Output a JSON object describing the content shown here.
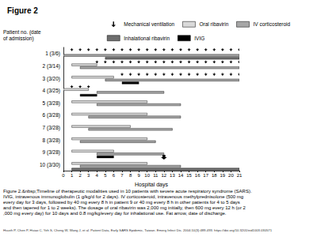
{
  "chart_data": {
    "type": "timeline",
    "title": "Figure 2",
    "ylabel": "Patient no. (date of admission)",
    "xlabel": "Hospital days",
    "categories": [
      "1 (3/6)",
      "2 (3/14)",
      "3 (3/20)",
      "4 (3/25)",
      "5 (3/28)",
      "6 (3/28)",
      "7 (3/28)",
      "8 (3/28)",
      "9 (3/28)",
      "10 (3/30)"
    ],
    "xlim": [
      0,
      21
    ],
    "xticks": [
      0,
      1,
      2,
      3,
      4,
      5,
      6,
      7,
      8,
      9,
      10,
      11,
      12,
      13,
      14,
      15,
      16,
      17,
      18,
      19,
      20,
      21
    ],
    "grid": false,
    "legend": "top",
    "series": [
      {
        "name": "Mechanical ventilation",
        "type": "scatter",
        "marker": "arrow",
        "color": "#000000",
        "values": [
          {
            "patient": "1 (3/6)",
            "day": 1
          },
          {
            "patient": "1 (3/6)",
            "day": 2
          },
          {
            "patient": "1 (3/6)",
            "day": 3
          },
          {
            "patient": "1 (3/6)",
            "day": 4
          },
          {
            "patient": "1 (3/6)",
            "day": 5
          },
          {
            "patient": "1 (3/6)",
            "day": 6
          },
          {
            "patient": "1 (3/6)",
            "day": 7
          },
          {
            "patient": "1 (3/6)",
            "day": 8
          },
          {
            "patient": "1 (3/6)",
            "day": 9
          },
          {
            "patient": "1 (3/6)",
            "day": 10
          },
          {
            "patient": "1 (3/6)",
            "day": 11
          },
          {
            "patient": "1 (3/6)",
            "day": 12
          },
          {
            "patient": "1 (3/6)",
            "day": 13
          },
          {
            "patient": "1 (3/6)",
            "day": 14
          },
          {
            "patient": "1 (3/6)",
            "day": 15
          },
          {
            "patient": "1 (3/6)",
            "day": 16
          },
          {
            "patient": "1 (3/6)",
            "day": 17
          },
          {
            "patient": "1 (3/6)",
            "day": 18
          },
          {
            "patient": "1 (3/6)",
            "day": 19
          },
          {
            "patient": "1 (3/6)",
            "day": 20
          },
          {
            "patient": "1 (3/6)",
            "day": 21
          },
          {
            "patient": "2 (3/14)",
            "day": 4
          },
          {
            "patient": "2 (3/14)",
            "day": 5
          },
          {
            "patient": "2 (3/14)",
            "day": 6
          },
          {
            "patient": "2 (3/14)",
            "day": 7
          },
          {
            "patient": "2 (3/14)",
            "day": 8
          },
          {
            "patient": "2 (3/14)",
            "day": 9
          },
          {
            "patient": "2 (3/14)",
            "day": 10
          },
          {
            "patient": "2 (3/14)",
            "day": 11
          },
          {
            "patient": "2 (3/14)",
            "day": 12
          },
          {
            "patient": "2 (3/14)",
            "day": 13
          },
          {
            "patient": "2 (3/14)",
            "day": 14
          },
          {
            "patient": "2 (3/14)",
            "day": 15
          },
          {
            "patient": "2 (3/14)",
            "day": 16
          },
          {
            "patient": "2 (3/14)",
            "day": 17
          },
          {
            "patient": "2 (3/14)",
            "day": 18
          },
          {
            "patient": "2 (3/14)",
            "day": 19
          },
          {
            "patient": "2 (3/14)",
            "day": 20
          },
          {
            "patient": "2 (3/14)",
            "day": 21
          },
          {
            "patient": "3 (3/20)",
            "day": 7
          },
          {
            "patient": "3 (3/20)",
            "day": 8
          },
          {
            "patient": "3 (3/20)",
            "day": 9
          },
          {
            "patient": "3 (3/20)",
            "day": 10
          },
          {
            "patient": "3 (3/20)",
            "day": 11
          },
          {
            "patient": "3 (3/20)",
            "day": 12
          },
          {
            "patient": "3 (3/20)",
            "day": 13
          },
          {
            "patient": "3 (3/20)",
            "day": 14
          },
          {
            "patient": "3 (3/20)",
            "day": 15
          },
          {
            "patient": "3 (3/20)",
            "day": 16
          },
          {
            "patient": "3 (3/20)",
            "day": 17
          },
          {
            "patient": "3 (3/20)",
            "day": 18
          },
          {
            "patient": "3 (3/20)",
            "day": 19
          },
          {
            "patient": "3 (3/20)",
            "day": 20
          },
          {
            "patient": "3 (3/20)",
            "day": 21
          },
          {
            "patient": "4 (3/25)",
            "day": 1
          },
          {
            "patient": "4 (3/25)",
            "day": 2
          },
          {
            "patient": "4 (3/25)",
            "day": 3
          }
        ]
      },
      {
        "name": "Oral ribavirin",
        "type": "bar",
        "color": "#d9d9d9",
        "values": [
          {
            "patient": "2 (3/14)",
            "start": 1,
            "end": 4
          },
          {
            "patient": "3 (3/20)",
            "start": 1,
            "end": 6
          },
          {
            "patient": "4 (3/25)",
            "start": 0,
            "end": 3
          },
          {
            "patient": "5 (3/28)",
            "start": 1,
            "end": 10
          },
          {
            "patient": "6 (3/28)",
            "start": 1,
            "end": 10
          },
          {
            "patient": "7 (3/28)",
            "start": 1,
            "end": 8
          },
          {
            "patient": "8 (3/28)",
            "start": 1,
            "end": 10
          },
          {
            "patient": "9 (3/28)",
            "start": 1,
            "end": 6
          },
          {
            "patient": "10 (3/30)",
            "start": 1,
            "end": 10
          }
        ]
      },
      {
        "name": "IV corticosteroid",
        "type": "bar",
        "color": "#a6a6a6",
        "values": [
          {
            "patient": "1 (3/6)",
            "start": 0,
            "end": 21
          },
          {
            "patient": "2 (3/14)",
            "start": 2,
            "end": 21
          },
          {
            "patient": "3 (3/20)",
            "start": 5,
            "end": 21
          },
          {
            "patient": "4 (3/25)",
            "start": 4,
            "end": 12
          },
          {
            "patient": "5 (3/28)",
            "start": 4,
            "end": 14
          },
          {
            "patient": "6 (3/28)",
            "start": 3,
            "end": 14
          },
          {
            "patient": "7 (3/28)",
            "start": 3,
            "end": 13
          },
          {
            "patient": "8 (3/28)",
            "start": 2,
            "end": 11
          },
          {
            "patient": "9 (3/28)",
            "start": 4,
            "end": 12
          },
          {
            "patient": "10 (3/30)",
            "start": 2,
            "end": 14
          }
        ]
      },
      {
        "name": "Inhalational ribavirin",
        "type": "bar",
        "color": "#6e6e6e",
        "values": [
          {
            "patient": "1 (3/6)",
            "start": 5,
            "end": 21
          },
          {
            "patient": "10 (3/30)",
            "start": 1,
            "end": 21
          }
        ]
      },
      {
        "name": "IVIG",
        "type": "bar",
        "color": "#000000",
        "values": [
          {
            "patient": "3 (3/20)",
            "start": 7,
            "end": 9
          },
          {
            "patient": "4 (3/25)",
            "start": 2,
            "end": 4
          },
          {
            "patient": "9 (3/28)",
            "start": 4,
            "end": 6
          }
        ]
      }
    ],
    "discharge": [
      {
        "patient": "9 (3/28)",
        "day": 12
      }
    ],
    "caption": "Figure 2.&nbsp;Timeline of therapeutic modalities used in 10 patients with severe acute respiratory syndrome (SARS). IVIG, intravenous immunoglobulin (1 g/kg/d for 2 days). IV corticosteroid, intravenous methylprednisolone (500 mg every day for 3 days, followed by 40 mg every 8 h in patient 9 or 40 mg every 8 h in other patients for 4 to 5 days and then tapered for 1 to 2 weeks). The dosage of oral ribavirin was 2,000 mg initially, then 600 mg every 12 h (or 2,000 mg every day) for 10 days and 0.8 mg/kg/every day for inhalational use. Fat arrow, date of discharge.",
    "source": "Hsueh P, Chen P, Hsiao C, Yeh S, Cheng W, Wang J, et al. Patient Data, Early SARS Epidemic, Taiwan. Emerg Infect Dis. 2004;10(3):489-493. https://doi.org/10.3201/eid1003.030571"
  }
}
